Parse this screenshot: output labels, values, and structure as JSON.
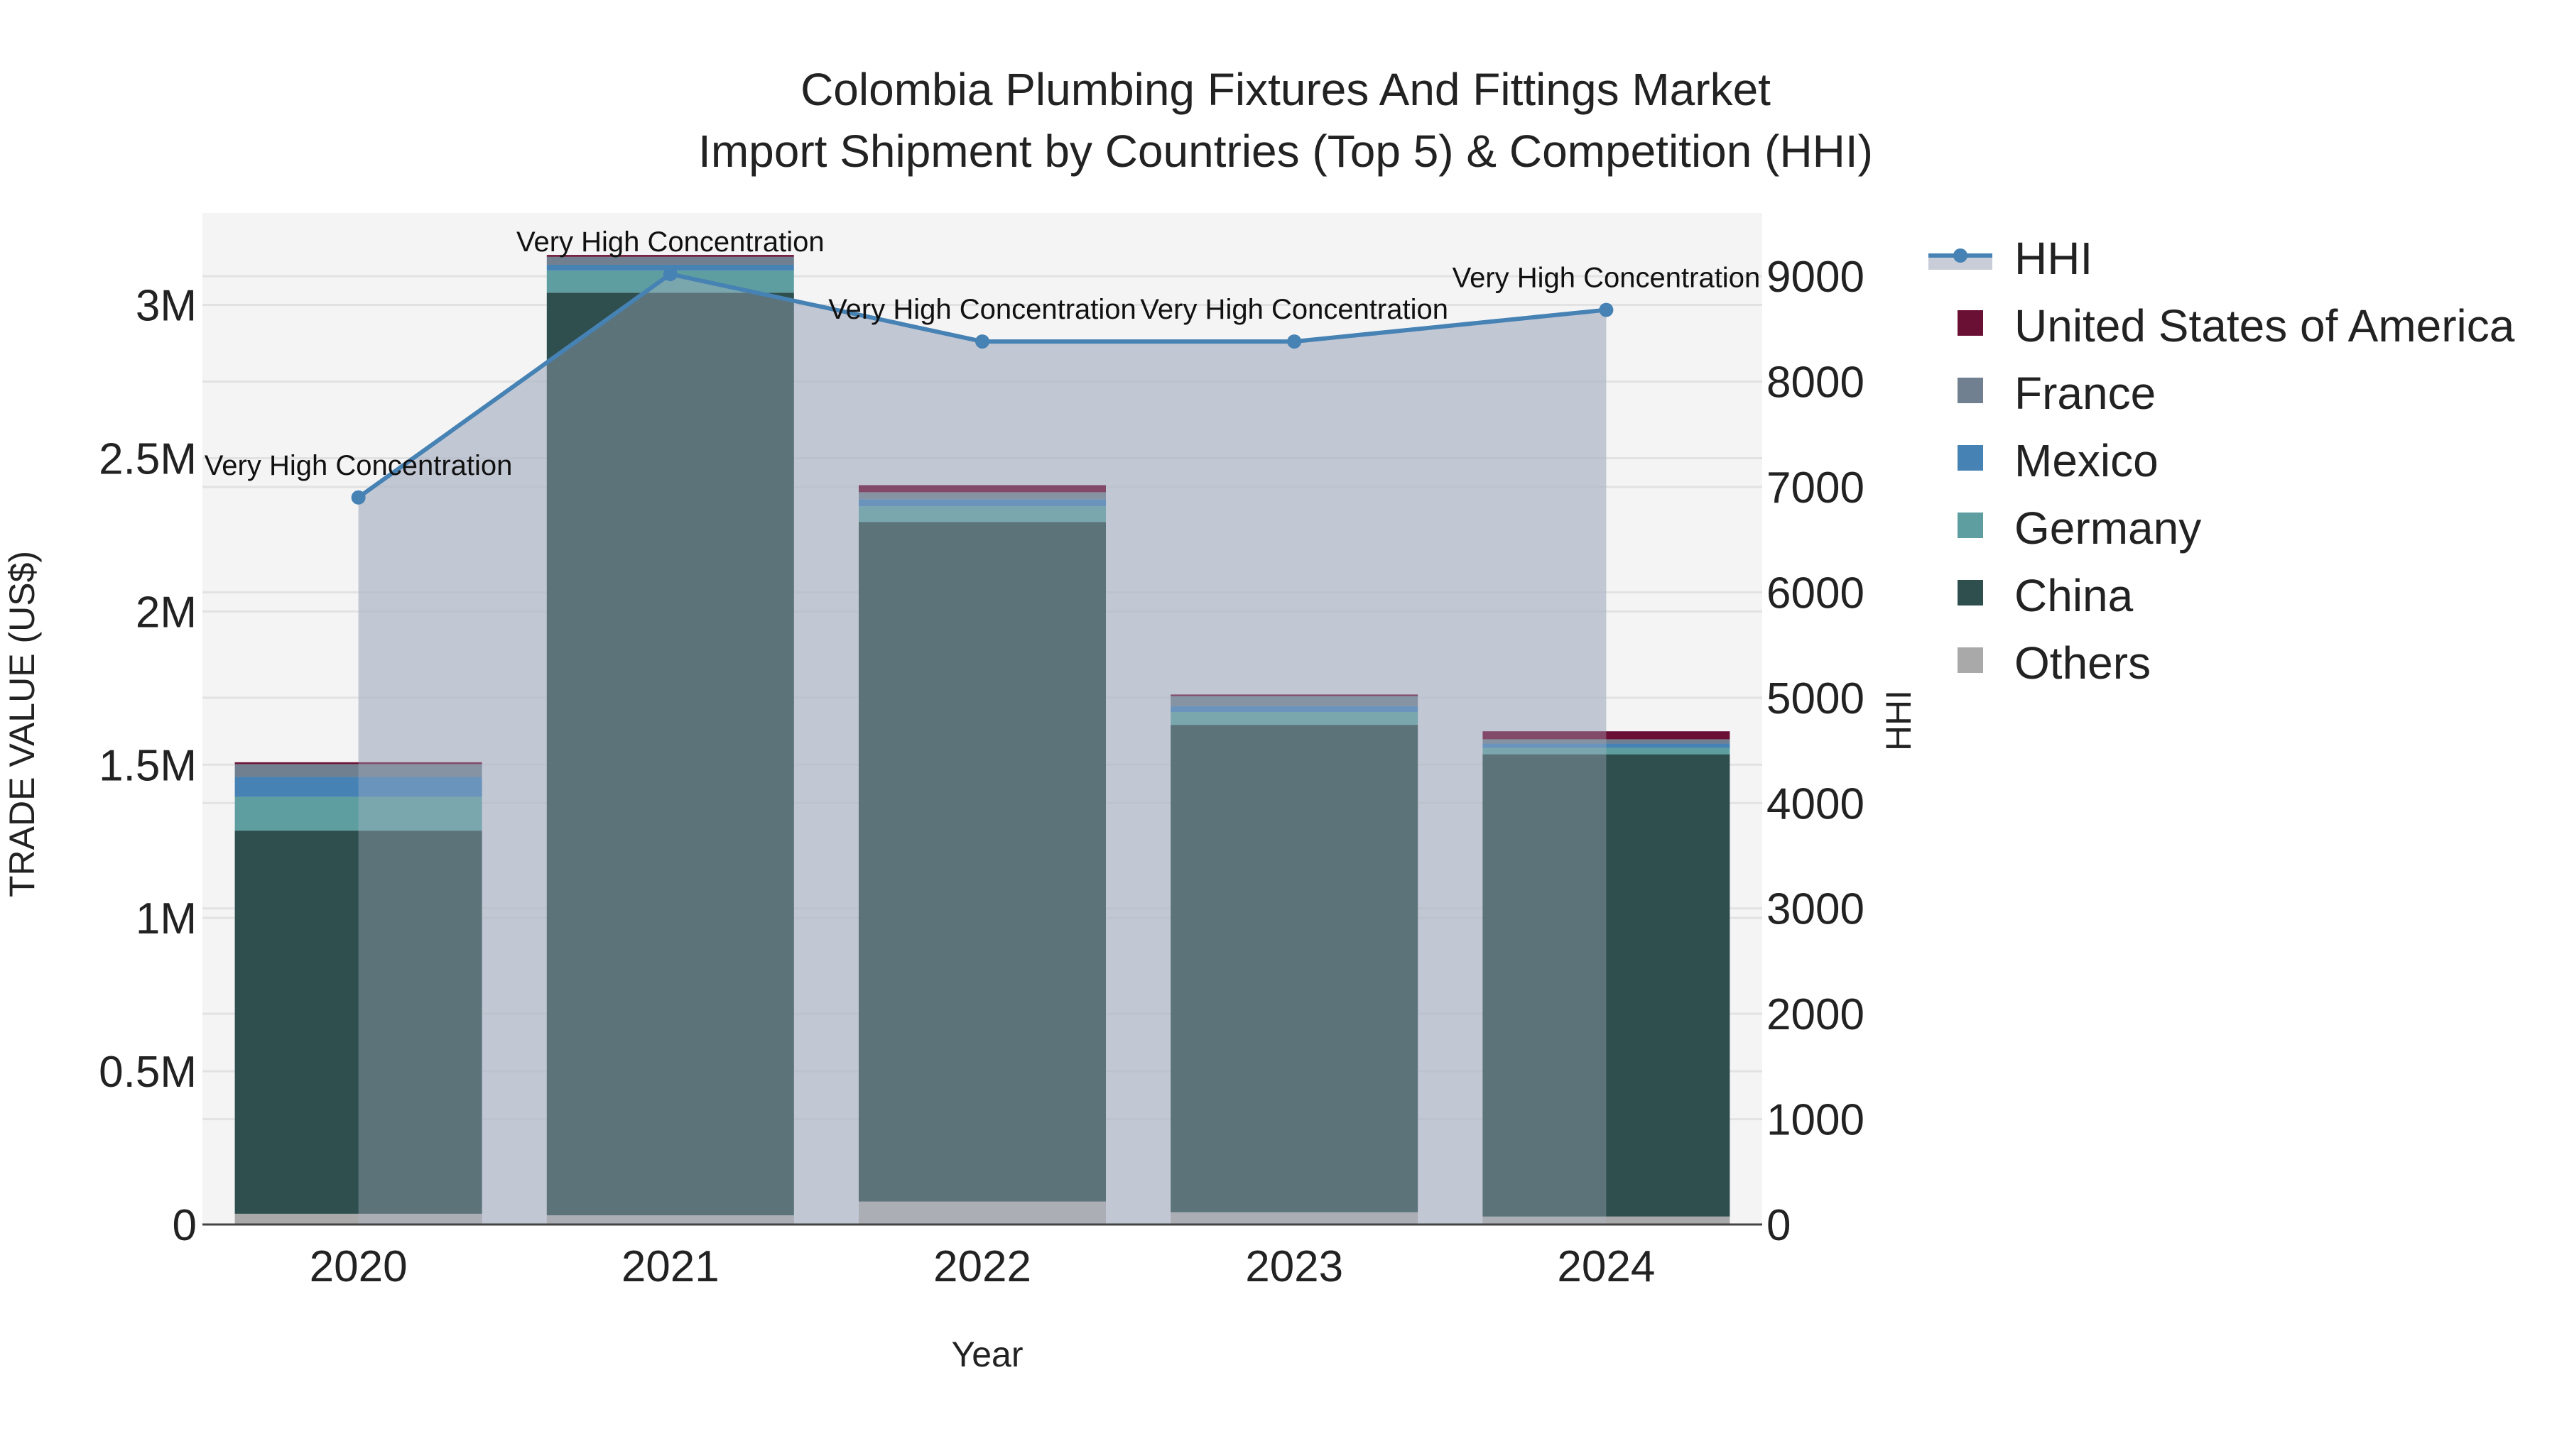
{
  "chart_data": {
    "type": "bar",
    "title": "Colombia Plumbing Fixtures And Fittings Market",
    "subtitle": "Import Shipment by Countries (Top 5) & Competition (HHI)",
    "xlabel": "Year",
    "ylabel": "TRADE VALUE (US$)",
    "y2label": "HHI",
    "categories": [
      "2020",
      "2021",
      "2022",
      "2023",
      "2024"
    ],
    "barmode": "stack",
    "ylim": [
      0,
      3300000
    ],
    "y2lim": [
      0,
      9600
    ],
    "yticks": [
      {
        "value": 0,
        "label": "0"
      },
      {
        "value": 500000,
        "label": "0.5M"
      },
      {
        "value": 1000000,
        "label": "1M"
      },
      {
        "value": 1500000,
        "label": "1.5M"
      },
      {
        "value": 2000000,
        "label": "2M"
      },
      {
        "value": 2500000,
        "label": "2.5M"
      },
      {
        "value": 3000000,
        "label": "3M"
      }
    ],
    "y2ticks": [
      {
        "value": 0,
        "label": "0"
      },
      {
        "value": 1000,
        "label": "1000"
      },
      {
        "value": 2000,
        "label": "2000"
      },
      {
        "value": 3000,
        "label": "3000"
      },
      {
        "value": 4000,
        "label": "4000"
      },
      {
        "value": 5000,
        "label": "5000"
      },
      {
        "value": 6000,
        "label": "6000"
      },
      {
        "value": 7000,
        "label": "7000"
      },
      {
        "value": 8000,
        "label": "8000"
      },
      {
        "value": 9000,
        "label": "9000"
      }
    ],
    "series": [
      {
        "name": "Others",
        "color": "#A9A9A9",
        "values": [
          35000,
          30000,
          75000,
          40000,
          26000
        ]
      },
      {
        "name": "China",
        "color": "#2F4F4F",
        "values": [
          1250000,
          3010000,
          2217000,
          1590000,
          1508000
        ]
      },
      {
        "name": "Germany",
        "color": "#5F9EA0",
        "values": [
          110000,
          72000,
          51000,
          42000,
          21000
        ]
      },
      {
        "name": "Mexico",
        "color": "#4682B4",
        "values": [
          65000,
          19000,
          23000,
          19000,
          14000
        ]
      },
      {
        "name": "France",
        "color": "#708090",
        "values": [
          42000,
          26000,
          23000,
          33000,
          14000
        ]
      },
      {
        "name": "United States of America",
        "color": "#6B1035",
        "values": [
          6000,
          6000,
          23000,
          5000,
          26000
        ]
      }
    ],
    "hhi": {
      "name": "HHI",
      "color": "#4682B4",
      "fill_color": "#B0B8C8",
      "values": [
        6900,
        9020,
        8380,
        8380,
        8680
      ],
      "annotations": [
        "Very High Concentration",
        "Very High Concentration",
        "Very High Concentration",
        "Very High Concentration",
        "Very High Concentration"
      ]
    },
    "legend": {
      "position": "right",
      "items": [
        "HHI",
        "United States of America",
        "France",
        "Mexico",
        "Germany",
        "China",
        "Others"
      ]
    },
    "grid": true,
    "plot_bgcolor": "#F4F4F4"
  }
}
